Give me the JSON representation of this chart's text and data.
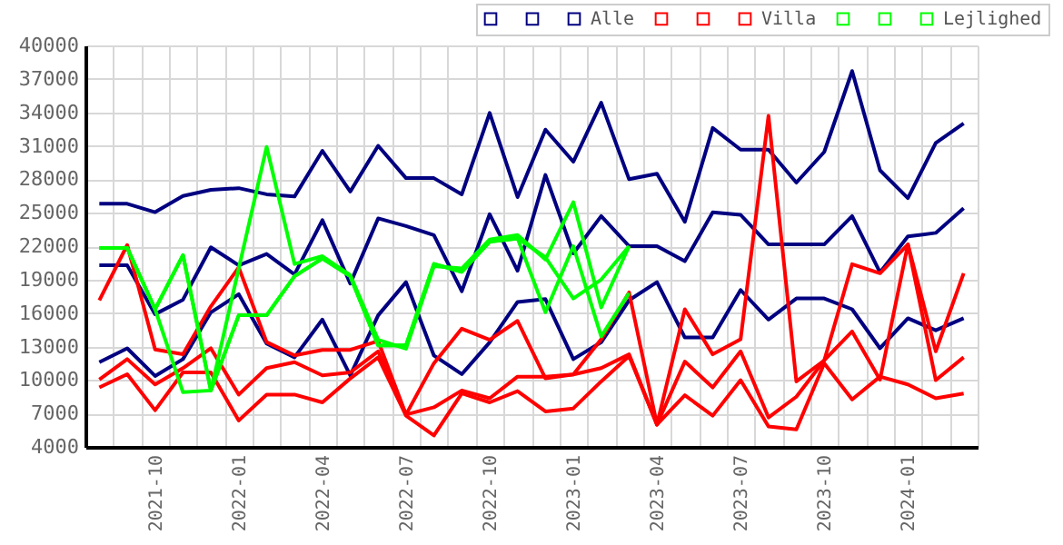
{
  "chart_data": {
    "type": "line",
    "categories": [
      null,
      null,
      "2021-10",
      null,
      null,
      "2022-01",
      null,
      null,
      "2022-04",
      null,
      null,
      "2022-07",
      null,
      null,
      "2022-10",
      null,
      null,
      "2023-01",
      null,
      null,
      "2023-04",
      null,
      null,
      "2023-07",
      null,
      null,
      "2023-10",
      null,
      null,
      "2024-01",
      null,
      null
    ],
    "ylim": [
      4000,
      40000
    ],
    "yticks": [
      4000,
      7000,
      10000,
      13000,
      16000,
      19000,
      22000,
      25000,
      28000,
      31000,
      34000,
      37000,
      40000
    ],
    "grid": true,
    "legend": "top right",
    "series": [
      {
        "color": "#000080",
        "values": [
          25800,
          25800,
          25050,
          26500,
          27050,
          27200,
          26650,
          26450,
          30550,
          26900,
          31000,
          28100,
          28100,
          26650,
          33950,
          26400,
          32450,
          29570,
          34860,
          28000,
          28500,
          24180,
          32600,
          30650,
          30650,
          27700,
          30450,
          37700,
          28800,
          26300,
          31250,
          33000
        ]
      },
      {
        "color": "#000080",
        "values": [
          20280,
          20280,
          15900,
          17200,
          21900,
          20280,
          21300,
          19470,
          24330,
          18650,
          24490,
          23800,
          22990,
          17960,
          24870,
          19800,
          28380,
          21350,
          24700,
          22000,
          22000,
          20650,
          25030,
          24810,
          22160,
          22160,
          22160,
          24700,
          19650,
          22870,
          23190,
          25400
        ]
      },
      {
        "name": "Alle",
        "color": "#000080",
        "values": [
          11600,
          12840,
          10360,
          11870,
          16070,
          17690,
          13270,
          12030,
          15420,
          10410,
          15800,
          18770,
          12190,
          10520,
          13380,
          17000,
          17250,
          11870,
          13380,
          17150,
          18770,
          13810,
          13810,
          18070,
          15420,
          17310,
          17310,
          16340,
          12840,
          15530,
          14450,
          15530
        ]
      },
      {
        "color": "#ff0000",
        "values": [
          17150,
          22100,
          12730,
          12300,
          16600,
          20100,
          13400,
          12200,
          12700,
          12700,
          13500,
          6900,
          11500,
          14600,
          13600,
          15300,
          10140,
          10500,
          13650,
          17850,
          6000,
          16340,
          12300,
          13650,
          33680,
          9870,
          11760,
          20380,
          19570,
          22160,
          12570,
          19570
        ]
      },
      {
        "color": "#ff0000",
        "values": [
          10030,
          11870,
          9600,
          11060,
          12840,
          8690,
          11060,
          11600,
          10410,
          10680,
          12570,
          6900,
          7550,
          9060,
          8360,
          10300,
          10300,
          10500,
          11060,
          12300,
          6000,
          11650,
          9330,
          12570,
          6640,
          8500,
          11760,
          14350,
          10030,
          22160,
          9980,
          12030
        ]
      },
      {
        "name": "Villa",
        "color": "#ff0000",
        "values": [
          9330,
          10520,
          7290,
          10680,
          10680,
          6370,
          8690,
          8690,
          7990,
          10140,
          12030,
          6800,
          5020,
          8800,
          7990,
          9000,
          7180,
          7450,
          9870,
          12140,
          6000,
          8630,
          6800,
          9980,
          5830,
          5560,
          11500,
          8260,
          10300,
          9600,
          8360,
          8790
        ]
      },
      {
        "color": "#00ff00",
        "values": [
          21840,
          21840,
          16340,
          8900,
          9060,
          15800,
          15800,
          19300,
          20900,
          19300,
          13100,
          13100,
          20400,
          19700,
          22400,
          22700,
          16070,
          22000,
          13900,
          17800,
          null,
          null,
          null,
          null,
          null,
          null,
          null,
          null,
          null,
          null,
          null,
          null
        ]
      },
      {
        "color": "#00ff00",
        "values": [
          21840,
          21840,
          16340,
          21190,
          9060,
          20000,
          30900,
          20400,
          21100,
          19400,
          13600,
          12800,
          20200,
          20000,
          22600,
          23000,
          20800,
          25950,
          16500,
          22000,
          null,
          null,
          null,
          null,
          null,
          null,
          null,
          null,
          null,
          null,
          null,
          null
        ]
      },
      {
        "name": "Lejlighed",
        "color": "#00ff00",
        "values": [
          21840,
          21840,
          16340,
          21190,
          9060,
          15800,
          15800,
          19300,
          20900,
          19300,
          13100,
          13100,
          20400,
          19700,
          22400,
          22700,
          21000,
          17300,
          19000,
          22000,
          null,
          null,
          null,
          null,
          null,
          null,
          null,
          null,
          null,
          null,
          null,
          null
        ]
      }
    ]
  }
}
